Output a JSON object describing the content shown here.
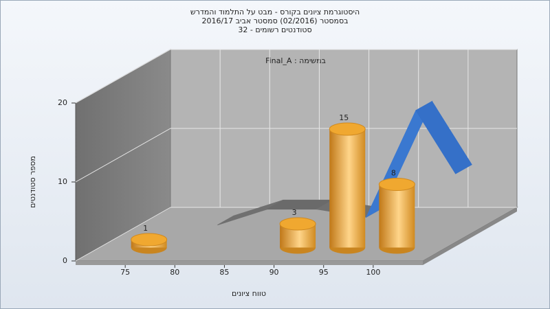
{
  "chart_data": {
    "type": "bar",
    "title": [
      "היסטוגרמת ציונים בקורס - מבט על התלמוד והמדרש",
      "בסמסטר  (02/2016)  סמסטר אביב 2016/17",
      "סטודנטים רשומים - 32"
    ],
    "annotation": "Final_A : במשימה",
    "x_label": "טווח ציונים",
    "y_label": "מספר סטודנטים",
    "x": [
      75,
      90,
      95,
      100
    ],
    "values": [
      1,
      3,
      15,
      8
    ],
    "color": "#f0a830",
    "line": {
      "x": [
        80,
        85,
        90,
        95,
        100,
        104
      ],
      "values": [
        1.5,
        3.5,
        3.5,
        2.5,
        16,
        8
      ],
      "segment_colors": [
        "#707070",
        "#6a6a6a",
        "#707070",
        "#3a78d0",
        "#3570c8"
      ]
    },
    "xlim": [
      70,
      105
    ],
    "xticks": [
      75,
      80,
      85,
      90,
      95,
      100
    ],
    "ylim": [
      0,
      20
    ],
    "yticks": [
      0,
      10,
      20
    ],
    "grid": true
  }
}
